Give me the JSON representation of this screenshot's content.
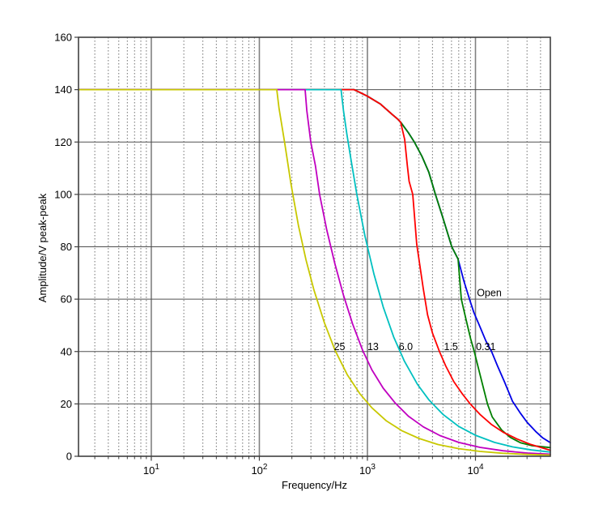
{
  "chart_data": {
    "type": "line",
    "title": "",
    "xlabel": "Frequency/Hz",
    "ylabel": "Amplitude/V peak-peak",
    "xscale": "log",
    "xlim": [
      2.12,
      49300
    ],
    "ylim": [
      0,
      160
    ],
    "yticks": [
      0,
      20,
      40,
      60,
      80,
      100,
      120,
      140,
      160
    ],
    "xticks": [
      10,
      100,
      1000,
      10000
    ],
    "grid": {
      "major": true,
      "minor_vertical_dotted": true,
      "legend": "none"
    },
    "axis_color": "#404040",
    "major_grid_color": "#808080",
    "minor_grid_color": "#707070",
    "series": [
      {
        "name": "Open",
        "color": "#0000E6",
        "points": [
          [
            2.12,
            140
          ],
          [
            750,
            140
          ],
          [
            1000,
            137.5
          ],
          [
            1320,
            134.5
          ],
          [
            1700,
            130.5
          ],
          [
            1900,
            128.8
          ],
          [
            2030,
            127.6
          ],
          [
            2400,
            123.5
          ],
          [
            2720,
            120
          ],
          [
            3200,
            114.5
          ],
          [
            3700,
            108.5
          ],
          [
            4260,
            100
          ],
          [
            5000,
            91
          ],
          [
            6030,
            80
          ],
          [
            6900,
            75.3
          ],
          [
            7800,
            67
          ],
          [
            8800,
            60
          ],
          [
            9650,
            55
          ],
          [
            11000,
            49.5
          ],
          [
            12500,
            44
          ],
          [
            14100,
            40
          ],
          [
            16000,
            34.5
          ],
          [
            18500,
            28.5
          ],
          [
            22000,
            21
          ],
          [
            26000,
            16.5
          ],
          [
            30000,
            13
          ],
          [
            36000,
            9.5
          ],
          [
            42000,
            7
          ],
          [
            49300,
            5.2
          ]
        ]
      },
      {
        "name": "0.31",
        "color": "#008000",
        "points": [
          [
            2.12,
            140
          ],
          [
            750,
            140
          ],
          [
            1000,
            137.5
          ],
          [
            1320,
            134.5
          ],
          [
            1700,
            130.5
          ],
          [
            1900,
            128.8
          ],
          [
            2030,
            127.6
          ],
          [
            2400,
            123.5
          ],
          [
            2720,
            120
          ],
          [
            3200,
            114.5
          ],
          [
            3700,
            108.5
          ],
          [
            4260,
            100
          ],
          [
            5000,
            91
          ],
          [
            6030,
            80
          ],
          [
            6900,
            75.3
          ],
          [
            7400,
            60
          ],
          [
            8200,
            52
          ],
          [
            9000,
            45
          ],
          [
            9750,
            40
          ],
          [
            11200,
            30
          ],
          [
            12900,
            20
          ],
          [
            14300,
            15
          ],
          [
            17500,
            10
          ],
          [
            21000,
            7.2
          ],
          [
            26000,
            5.2
          ],
          [
            33000,
            4.1
          ],
          [
            49300,
            3.3
          ]
        ]
      },
      {
        "name": "1.5",
        "color": "#FF0000",
        "points": [
          [
            2.12,
            140
          ],
          [
            750,
            140
          ],
          [
            850,
            139
          ],
          [
            1000,
            137.5
          ],
          [
            1150,
            136
          ],
          [
            1320,
            134.5
          ],
          [
            1500,
            132.5
          ],
          [
            1700,
            130.5
          ],
          [
            1900,
            128.8
          ],
          [
            2030,
            127.6
          ],
          [
            2210,
            121
          ],
          [
            2340,
            111
          ],
          [
            2430,
            105
          ],
          [
            2630,
            100
          ],
          [
            2860,
            81
          ],
          [
            3290,
            64
          ],
          [
            3600,
            54
          ],
          [
            4000,
            47
          ],
          [
            4645,
            40
          ],
          [
            5300,
            34.5
          ],
          [
            6300,
            28.5
          ],
          [
            7500,
            24
          ],
          [
            8940,
            20
          ],
          [
            11000,
            16
          ],
          [
            14000,
            12.2
          ],
          [
            18000,
            9.2
          ],
          [
            24000,
            6.7
          ],
          [
            32000,
            4.6
          ],
          [
            49300,
            2.3
          ]
        ]
      },
      {
        "name": "6.0",
        "color": "#00C0C0",
        "points": [
          [
            2.12,
            140
          ],
          [
            570,
            140
          ],
          [
            600,
            132
          ],
          [
            645,
            123
          ],
          [
            700,
            114
          ],
          [
            800,
            99.8
          ],
          [
            950,
            84
          ],
          [
            1150,
            69.5
          ],
          [
            1400,
            57
          ],
          [
            1750,
            45.6
          ],
          [
            2200,
            36.3
          ],
          [
            2900,
            27.5
          ],
          [
            3700,
            21.6
          ],
          [
            5000,
            16
          ],
          [
            7000,
            11.4
          ],
          [
            10000,
            8
          ],
          [
            15000,
            5.3
          ],
          [
            22000,
            3.6
          ],
          [
            33000,
            2.4
          ],
          [
            49300,
            1.6
          ]
        ]
      },
      {
        "name": "13",
        "color": "#C000C0",
        "points": [
          [
            2.12,
            140
          ],
          [
            265,
            140
          ],
          [
            275,
            132
          ],
          [
            299,
            120
          ],
          [
            330,
            111
          ],
          [
            361,
            100
          ],
          [
            420,
            86.5
          ],
          [
            500,
            73.5
          ],
          [
            600,
            61.5
          ],
          [
            730,
            50.5
          ],
          [
            902,
            40.5
          ],
          [
            1100,
            33
          ],
          [
            1400,
            26
          ],
          [
            1810,
            20.3
          ],
          [
            2400,
            15.3
          ],
          [
            3300,
            11.2
          ],
          [
            4700,
            7.9
          ],
          [
            7000,
            5.3
          ],
          [
            11000,
            3.4
          ],
          [
            18000,
            2.1
          ],
          [
            30000,
            1.25
          ],
          [
            49300,
            0.8
          ]
        ]
      },
      {
        "name": "25",
        "color": "#C8C800",
        "points": [
          [
            2.12,
            140
          ],
          [
            145,
            140
          ],
          [
            152,
            133
          ],
          [
            171,
            120
          ],
          [
            196,
            104
          ],
          [
            230,
            88
          ],
          [
            270,
            75
          ],
          [
            320,
            63.5
          ],
          [
            400,
            51
          ],
          [
            500,
            40.6
          ],
          [
            650,
            31.2
          ],
          [
            850,
            23.9
          ],
          [
            1100,
            18.5
          ],
          [
            1500,
            13.5
          ],
          [
            2100,
            9.7
          ],
          [
            3000,
            6.8
          ],
          [
            4500,
            4.5
          ],
          [
            7000,
            2.9
          ],
          [
            11000,
            1.85
          ],
          [
            18000,
            1.15
          ],
          [
            30000,
            0.7
          ],
          [
            49300,
            0.45
          ]
        ]
      }
    ],
    "annotations": [
      {
        "text": "25",
        "f": 490,
        "v": 42
      },
      {
        "text": "13",
        "f": 1000,
        "v": 42
      },
      {
        "text": "6.0",
        "f": 1950,
        "v": 42
      },
      {
        "text": "1.5",
        "f": 5100,
        "v": 42
      },
      {
        "text": "0.31",
        "f": 10100,
        "v": 42
      },
      {
        "text": "Open",
        "f": 10300,
        "v": 62.5
      }
    ]
  }
}
